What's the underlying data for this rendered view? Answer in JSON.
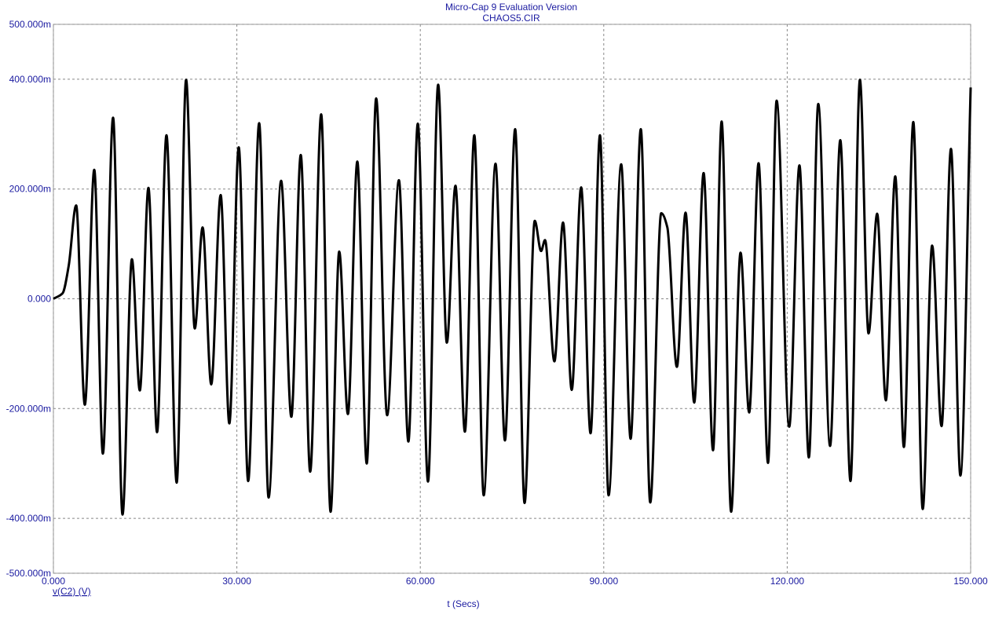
{
  "chart_data": {
    "type": "line",
    "title": "Micro-Cap 9 Evaluation Version",
    "subtitle": "CHAOS5.CIR",
    "x_label": "t (Secs)",
    "y_label": "v(C2) (V)",
    "xlim": [
      0,
      150
    ],
    "ylim": [
      -0.5,
      0.5
    ],
    "xticks": [
      {
        "value": 0,
        "label": "0.000"
      },
      {
        "value": 30,
        "label": "30.000"
      },
      {
        "value": 60,
        "label": "60.000"
      },
      {
        "value": 90,
        "label": "90.000"
      },
      {
        "value": 120,
        "label": "120.000"
      },
      {
        "value": 150,
        "label": "150.000"
      }
    ],
    "yticks": [
      {
        "value": 0.5,
        "label": "500.000m"
      },
      {
        "value": 0.4,
        "label": "400.000m"
      },
      {
        "value": 0.2,
        "label": "200.000m"
      },
      {
        "value": 0,
        "label": "0.000"
      },
      {
        "value": -0.2,
        "label": "-200.000m"
      },
      {
        "value": -0.4,
        "label": "-400.000m"
      },
      {
        "value": -0.5,
        "label": "-500.000m"
      }
    ],
    "grid": true,
    "x": [
      0,
      1.5,
      2.5,
      3.72,
      5.14,
      6.68,
      8.09,
      9.76,
      11.3,
      12.84,
      14.13,
      15.54,
      16.95,
      18.49,
      20.16,
      21.7,
      23.12,
      24.4,
      25.81,
      27.35,
      28.77,
      30.31,
      31.85,
      33.65,
      35.19,
      37.24,
      38.91,
      40.45,
      41.99,
      43.79,
      45.33,
      46.74,
      48.16,
      49.7,
      51.24,
      52.78,
      54.58,
      56.5,
      58.05,
      59.59,
      61.26,
      62.92,
      64.34,
      65.75,
      67.29,
      68.83,
      70.37,
      72.3,
      73.84,
      75.51,
      77.05,
      78.72,
      79.75,
      80.39,
      81.93,
      83.34,
      84.76,
      86.3,
      87.84,
      89.38,
      90.79,
      92.85,
      94.39,
      96.06,
      97.6,
      99.4,
      100.4,
      101.96,
      103.38,
      104.79,
      106.33,
      107.87,
      109.28,
      110.83,
      112.37,
      113.78,
      115.32,
      116.86,
      118.27,
      120.33,
      122.0,
      123.54,
      125.08,
      127.01,
      128.68,
      130.35,
      131.89,
      133.3,
      134.71,
      136.13,
      137.67,
      139.08,
      140.62,
      142.16,
      143.7,
      145.24,
      146.78,
      148.32,
      150
    ],
    "series": [
      {
        "name": "v(C2) (V)",
        "color": "#000000",
        "values": [
          0,
          0.01,
          0.06,
          0.17,
          -0.193,
          0.235,
          -0.282,
          0.33,
          -0.393,
          0.072,
          -0.167,
          0.202,
          -0.243,
          0.298,
          -0.335,
          0.399,
          -0.054,
          0.13,
          -0.156,
          0.189,
          -0.227,
          0.276,
          -0.332,
          0.32,
          -0.362,
          0.215,
          -0.215,
          0.262,
          -0.315,
          0.336,
          -0.388,
          0.086,
          -0.21,
          0.25,
          -0.3,
          0.365,
          -0.212,
          0.216,
          -0.26,
          0.319,
          -0.333,
          0.39,
          -0.08,
          0.206,
          -0.242,
          0.298,
          -0.358,
          0.246,
          -0.258,
          0.309,
          -0.372,
          0.142,
          0.087,
          0.107,
          -0.114,
          0.139,
          -0.166,
          0.203,
          -0.245,
          0.298,
          -0.358,
          0.245,
          -0.255,
          0.309,
          -0.371,
          0.156,
          0.13,
          -0.124,
          0.157,
          -0.189,
          0.229,
          -0.276,
          0.323,
          -0.388,
          0.084,
          -0.207,
          0.247,
          -0.299,
          0.361,
          -0.233,
          0.243,
          -0.289,
          0.355,
          -0.268,
          0.289,
          -0.332,
          0.399,
          -0.063,
          0.155,
          -0.185,
          0.223,
          -0.27,
          0.322,
          -0.383,
          0.097,
          -0.232,
          0.273,
          -0.322,
          0.385
        ]
      }
    ]
  }
}
